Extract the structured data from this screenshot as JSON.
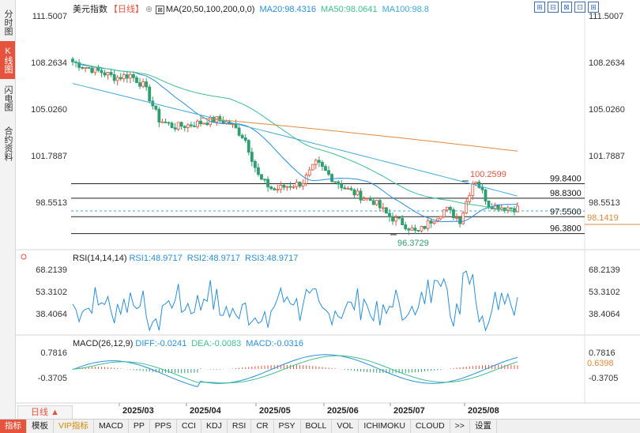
{
  "nav": {
    "tabs": [
      "分时图",
      "K线图",
      "闪电图",
      "合约资料"
    ],
    "active_index": 1
  },
  "main_legend": {
    "title": "美元指数",
    "period": "【日线】",
    "ma_label": "MA(20,50,100,200,0,0)",
    "ma20": "MA20:98.4316",
    "ma50": "MA50:98.0641",
    "ma100": "MA100:98.8"
  },
  "toolbar_icons": [
    "⊞",
    "⊟",
    "⊠",
    "⊡",
    "⊞"
  ],
  "price_axis": {
    "ticks": [
      {
        "label": "111.5007",
        "value": 111.5007
      },
      {
        "label": "108.2634",
        "value": 108.2634
      },
      {
        "label": "105.0260",
        "value": 105.026
      },
      {
        "label": "101.7887",
        "value": 101.7887
      },
      {
        "label": "98.5513",
        "value": 98.5513
      }
    ],
    "current_price": "98.1419"
  },
  "horizontal_levels": [
    {
      "label": "99.8400",
      "value": 99.84
    },
    {
      "label": "98.8300",
      "value": 98.83
    },
    {
      "label": "97.5500",
      "value": 97.55
    },
    {
      "label": "96.3800",
      "value": 96.38
    }
  ],
  "annotations": {
    "high": "100.2599",
    "low": "96.3729"
  },
  "rsi_legend": {
    "label": "RSI(14,14,14)",
    "rsi1": "RSI1:48.9717",
    "rsi2": "RSI2:48.9717",
    "rsi3": "RSI3:48.9717"
  },
  "rsi_axis": [
    "68.2139",
    "53.3102",
    "38.4064"
  ],
  "macd_legend": {
    "label": "MACD(26,12,9)",
    "diff": "DIFF:-0.0241",
    "dea": "DEA:-0.0083",
    "macd": "MACD:-0.0316"
  },
  "macd_axis": [
    "0.7816",
    "-0.3705"
  ],
  "macd_current": "0.6398",
  "x_axis": [
    "2025/03",
    "2025/04",
    "2025/05",
    "2025/06",
    "2025/07",
    "2025/08"
  ],
  "period_selector": "日线 ▲",
  "bottom_tabs": [
    "指标",
    "模板",
    "VIP指标",
    "MACD",
    "PP",
    "PPS",
    "CCI",
    "KDJ",
    "RSI",
    "CR",
    "PSY",
    "BOLL",
    "VOL",
    "ICHIMOKU",
    "CLOUD",
    ">>",
    "设置"
  ],
  "colors": {
    "up": "#e6533c",
    "down": "#2f9e6e",
    "ma20": "#2a8fd8",
    "ma50": "#3fbf8f",
    "ma100": "#3fa9d9",
    "ma200": "#e08a3c"
  },
  "chart_data": {
    "type": "candlestick",
    "title": "美元指数",
    "x_categories": [
      "2025/03",
      "2025/04",
      "2025/05",
      "2025/06",
      "2025/07",
      "2025/08"
    ],
    "ylim": [
      96.3729,
      111.5007
    ],
    "close_path": [
      [
        "2025/02",
        108.3
      ],
      [
        "2025/02",
        107.9
      ],
      [
        "2025/02",
        107.6
      ],
      [
        "2025/02",
        107.2
      ],
      [
        "2025/03",
        107.4
      ],
      [
        "2025/03",
        106.6
      ],
      [
        "2025/03",
        104.3
      ],
      [
        "2025/03",
        103.8
      ],
      [
        "2025/03",
        103.9
      ],
      [
        "2025/03",
        104.1
      ],
      [
        "2025/04",
        104.3
      ],
      [
        "2025/04",
        104.0
      ],
      [
        "2025/04",
        103.0
      ],
      [
        "2025/04",
        100.2
      ],
      [
        "2025/04",
        99.4
      ],
      [
        "2025/04",
        99.7
      ],
      [
        "2025/05",
        99.9
      ],
      [
        "2025/05",
        101.3
      ],
      [
        "2025/05",
        100.3
      ],
      [
        "2025/05",
        99.5
      ],
      [
        "2025/06",
        99.0
      ],
      [
        "2025/06",
        98.6
      ],
      [
        "2025/06",
        97.6
      ],
      [
        "2025/06",
        97.1
      ],
      [
        "2025/07",
        96.4
      ],
      [
        "2025/07",
        97.3
      ],
      [
        "2025/07",
        98.1
      ],
      [
        "2025/07",
        97.3
      ],
      [
        "2025/07",
        100.3
      ],
      [
        "2025/08",
        98.4
      ],
      [
        "2025/08",
        98.2
      ],
      [
        "2025/08",
        98.1419
      ]
    ]
  }
}
